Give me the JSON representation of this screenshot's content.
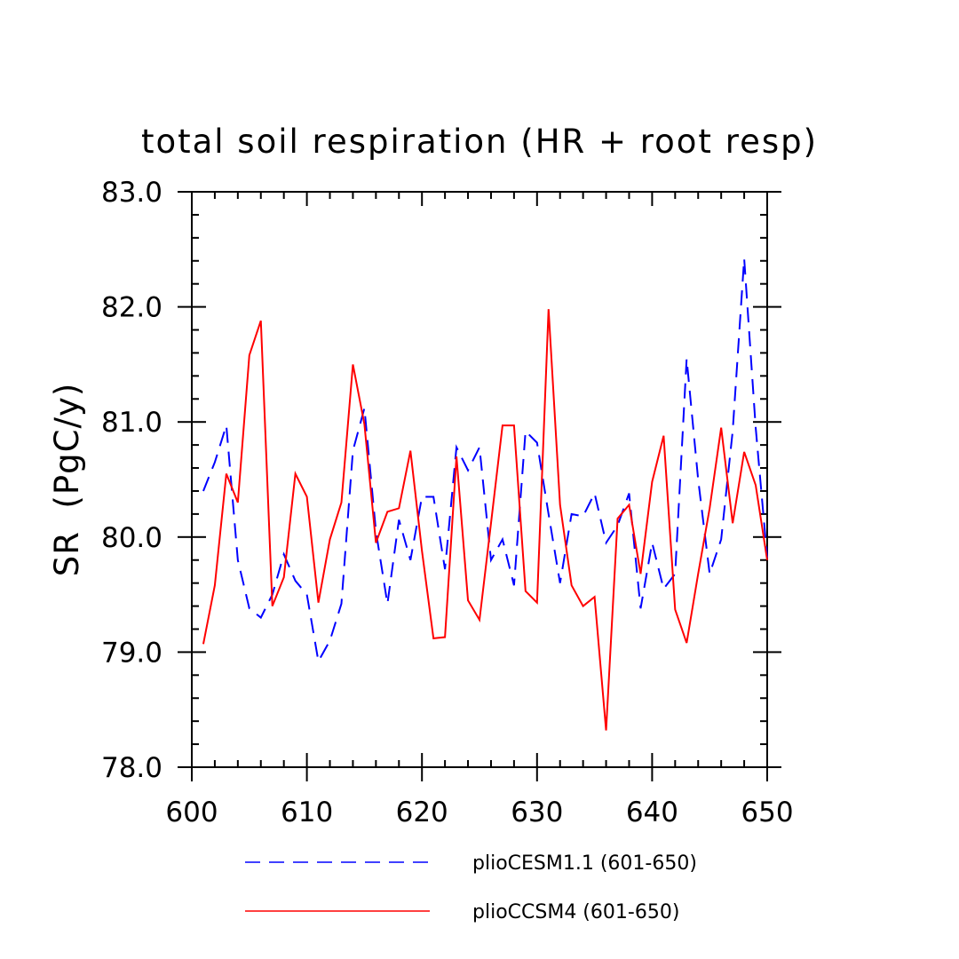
{
  "chart_data": {
    "type": "line",
    "title": "total soil respiration (HR + root resp)",
    "ylabel": "SR  (PgC/y)",
    "xlabel": "",
    "xlim": [
      600,
      650
    ],
    "ylim": [
      78.0,
      83.0
    ],
    "x_ticks": [
      600,
      610,
      620,
      630,
      640,
      650
    ],
    "x_tick_labels": [
      "600",
      "610",
      "620",
      "630",
      "640",
      "650"
    ],
    "y_ticks": [
      78.0,
      79.0,
      80.0,
      81.0,
      82.0,
      83.0
    ],
    "y_tick_labels": [
      "78.0",
      "79.0",
      "80.0",
      "81.0",
      "82.0",
      "83.0"
    ],
    "grid": false,
    "legend_position": "bottom",
    "x": [
      601,
      602,
      603,
      604,
      605,
      606,
      607,
      608,
      609,
      610,
      611,
      612,
      613,
      614,
      615,
      616,
      617,
      618,
      619,
      620,
      621,
      622,
      623,
      624,
      625,
      626,
      627,
      628,
      629,
      630,
      631,
      632,
      633,
      634,
      635,
      636,
      637,
      638,
      639,
      640,
      641,
      642,
      643,
      644,
      645,
      646,
      647,
      648,
      649,
      650
    ],
    "series": [
      {
        "name": "plioCESM1.1 (601-650)",
        "color": "#0000ff",
        "style": "dashed",
        "values": [
          80.4,
          80.65,
          80.97,
          79.8,
          79.38,
          79.3,
          79.5,
          79.85,
          79.62,
          79.5,
          78.92,
          79.1,
          79.42,
          80.75,
          81.12,
          80.05,
          79.42,
          80.15,
          79.8,
          80.35,
          80.35,
          79.72,
          80.78,
          80.58,
          80.78,
          79.8,
          79.98,
          79.58,
          80.92,
          80.82,
          80.2,
          79.6,
          80.2,
          80.18,
          80.38,
          79.95,
          80.1,
          80.38,
          79.38,
          79.95,
          79.55,
          79.68,
          81.55,
          80.5,
          79.68,
          79.98,
          80.92,
          82.42,
          80.95,
          79.82
        ]
      },
      {
        "name": "plioCCSM4 (601-650)",
        "color": "#ff0000",
        "style": "solid",
        "values": [
          79.07,
          79.58,
          80.55,
          80.3,
          81.58,
          81.88,
          79.4,
          79.65,
          80.55,
          80.35,
          79.43,
          79.98,
          80.3,
          81.5,
          80.98,
          79.95,
          80.22,
          80.25,
          80.75,
          79.88,
          79.12,
          79.13,
          80.7,
          79.45,
          79.28,
          80.12,
          80.97,
          80.97,
          79.53,
          79.43,
          81.98,
          80.28,
          79.58,
          79.4,
          79.48,
          78.32,
          80.16,
          80.28,
          79.68,
          80.48,
          80.88,
          79.37,
          79.08,
          79.68,
          80.25,
          80.95,
          80.12,
          80.74,
          80.45,
          79.8
        ]
      }
    ]
  }
}
